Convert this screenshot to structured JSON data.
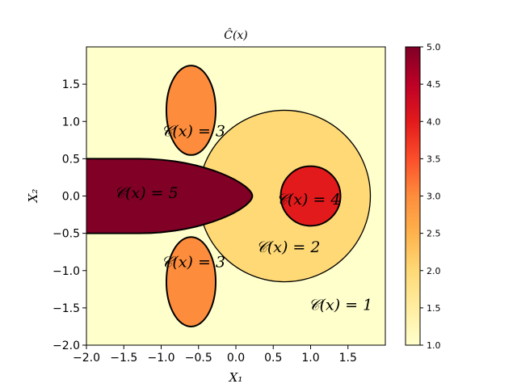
{
  "chart_data": {
    "type": "heatmap",
    "title": "Ĉ(x)",
    "xlabel": "X₁",
    "ylabel": "X₂",
    "xlim": [
      -2.0,
      2.0
    ],
    "ylim": [
      -2.0,
      2.0
    ],
    "xticks": [
      "−2.0",
      "−1.5",
      "−1.0",
      "−0.5",
      "0.0",
      "0.5",
      "1.0",
      "1.5"
    ],
    "yticks": [
      "−2.0",
      "−1.5",
      "−1.0",
      "−0.5",
      "0.0",
      "0.5",
      "1.0",
      "1.5"
    ],
    "colorbar": {
      "range": [
        1.0,
        5.0
      ],
      "ticks": [
        "1.0",
        "1.5",
        "2.0",
        "2.5",
        "3.0",
        "3.5",
        "4.0",
        "4.5",
        "5.0"
      ],
      "colormap": [
        "#ffffcc",
        "#ffeda0",
        "#fed976",
        "#feb24c",
        "#fd8d3c",
        "#fc4e2a",
        "#e31a1c",
        "#bd0026",
        "#800026"
      ]
    },
    "regions": [
      {
        "label": "𝒞(x) = 1",
        "value": 1,
        "color": "#ffffcc",
        "label_pos": [
          1.4,
          -1.45
        ]
      },
      {
        "label": "𝒞(x) = 2",
        "value": 2,
        "color": "#fed976",
        "label_pos": [
          0.7,
          -0.68
        ],
        "shape": {
          "kind": "disk",
          "center": [
            0.65,
            0.0
          ],
          "radius": 1.15
        }
      },
      {
        "label": "𝒞(x) = 3",
        "value": 3,
        "color": "#fd8d3c",
        "label_pos": [
          -0.57,
          0.88
        ],
        "shape": {
          "kind": "ellipse",
          "center": [
            -0.6,
            1.15
          ],
          "rx": 0.33,
          "ry": 0.6
        }
      },
      {
        "label": "𝒞(x) = 3",
        "value": 3,
        "color": "#fd8d3c",
        "label_pos": [
          -0.57,
          -0.88
        ],
        "shape": {
          "kind": "ellipse",
          "center": [
            -0.6,
            -1.15
          ],
          "rx": 0.33,
          "ry": 0.6
        }
      },
      {
        "label": "𝒞(x) = 4",
        "value": 4,
        "color": "#e31a1c",
        "label_pos": [
          0.97,
          -0.04
        ],
        "shape": {
          "kind": "disk",
          "center": [
            1.0,
            0.0
          ],
          "radius": 0.4
        }
      },
      {
        "label": "𝒞(x) = 5",
        "value": 5,
        "color": "#800026",
        "label_pos": [
          -1.2,
          0.05
        ],
        "shape": {
          "kind": "bullet",
          "x_left": -2.0,
          "x_tip": 0.22,
          "half_height": 0.5
        }
      }
    ]
  }
}
